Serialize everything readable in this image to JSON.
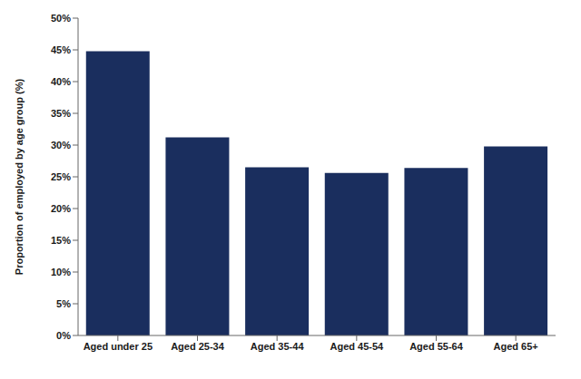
{
  "chart_data": {
    "type": "bar",
    "categories": [
      "Aged under 25",
      "Aged 25-34",
      "Aged 35-44",
      "Aged 45-54",
      "Aged 55-64",
      "Aged 65+"
    ],
    "values": [
      44.8,
      31.2,
      26.5,
      25.6,
      26.4,
      29.8
    ],
    "color": "#1a2e5e",
    "ylabel": "Proportion of employed by age group (%)",
    "ylim": [
      0,
      50
    ],
    "yticks": [
      {
        "value": 0,
        "label": "0%"
      },
      {
        "value": 5,
        "label": "5%"
      },
      {
        "value": 10,
        "label": "10%"
      },
      {
        "value": 15,
        "label": "15%"
      },
      {
        "value": 20,
        "label": "20%"
      },
      {
        "value": 25,
        "label": "25%"
      },
      {
        "value": 30,
        "label": "30%"
      },
      {
        "value": 35,
        "label": "35%"
      },
      {
        "value": 40,
        "label": "40%"
      },
      {
        "value": 45,
        "label": "45%"
      },
      {
        "value": 50,
        "label": "50%"
      }
    ],
    "grid": false
  }
}
